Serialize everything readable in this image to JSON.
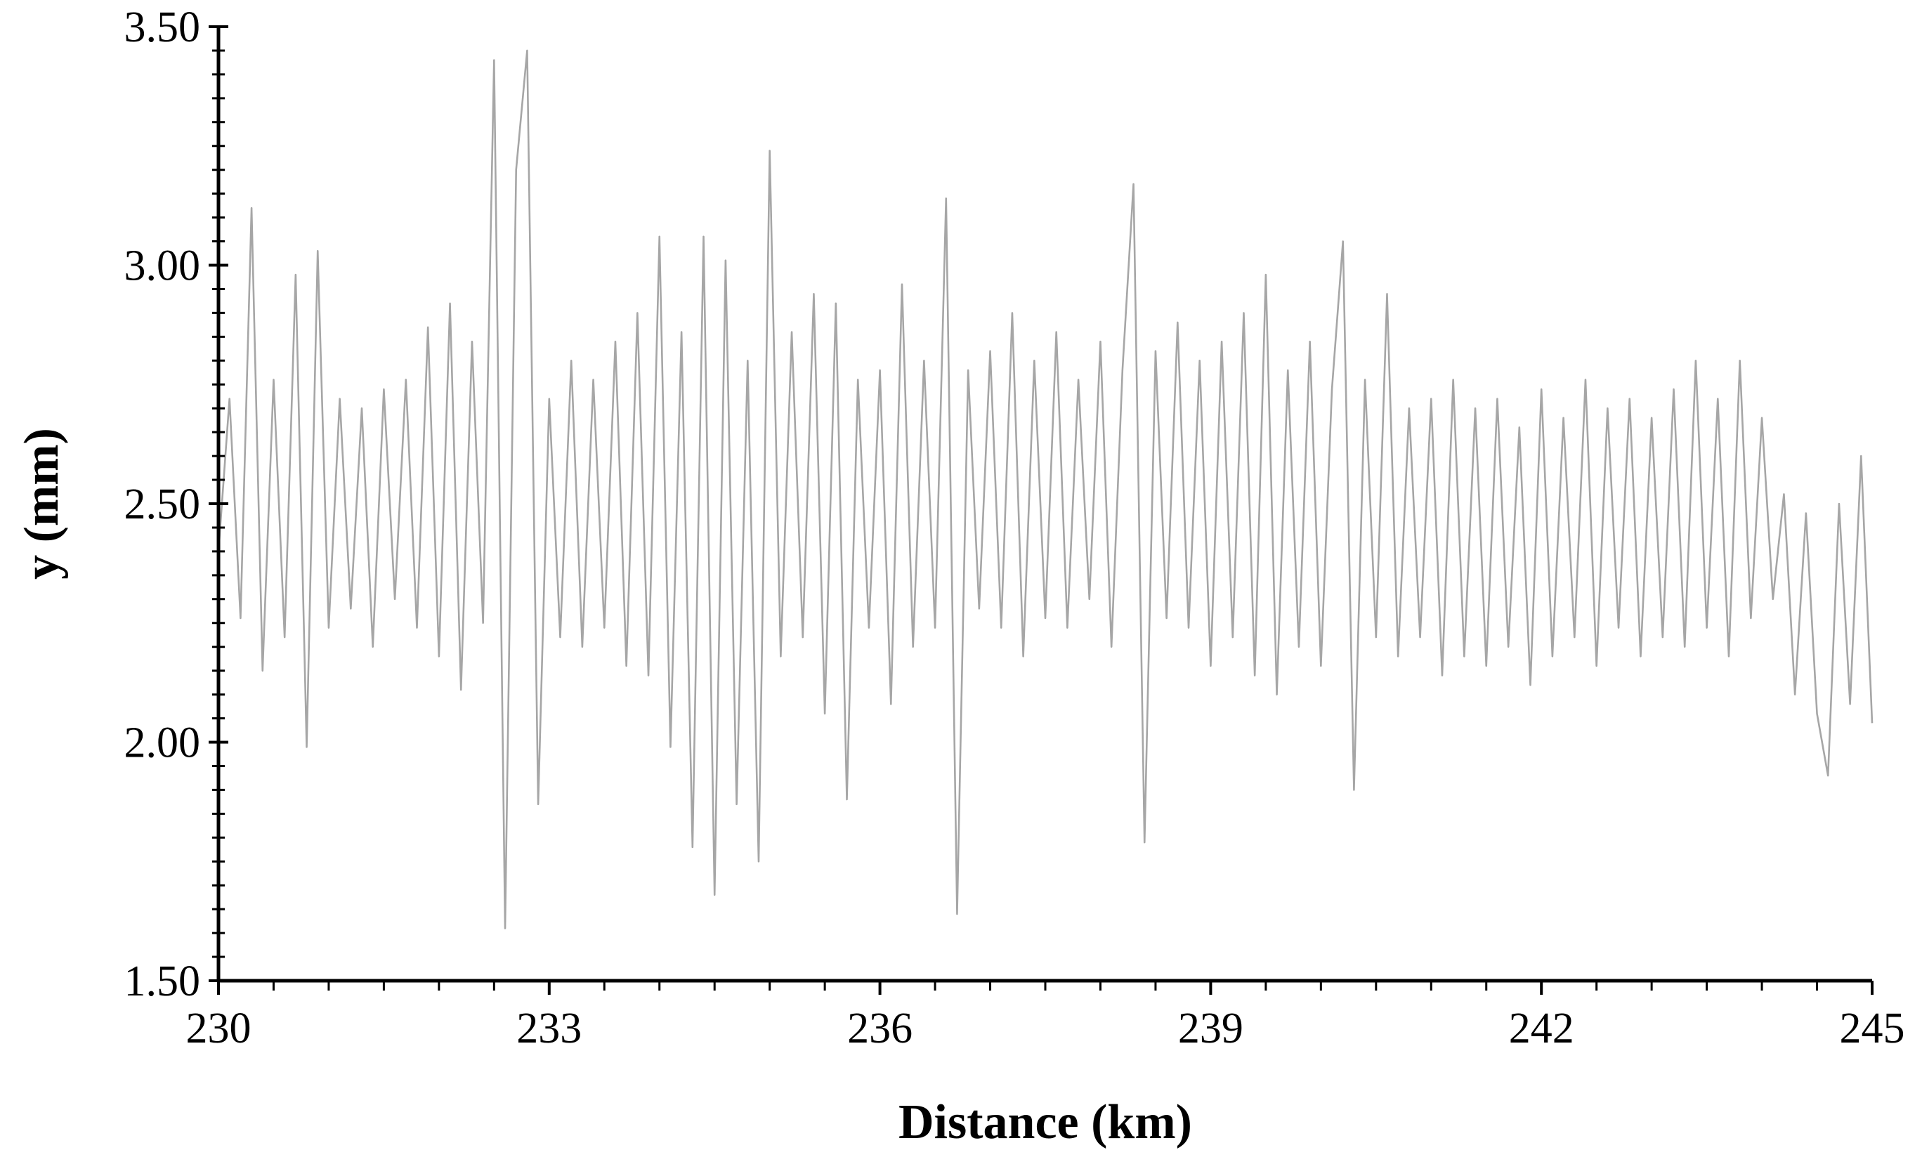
{
  "chart_data": {
    "type": "line",
    "xlabel": "Distance (km)",
    "ylabel": "y (mm)",
    "x": [
      230,
      230.1,
      230.2,
      230.3,
      230.4,
      230.5,
      230.6,
      230.7,
      230.8,
      230.9,
      231,
      231.1,
      231.2,
      231.3,
      231.4,
      231.5,
      231.6,
      231.7,
      231.8,
      231.9,
      232,
      232.1,
      232.2,
      232.3,
      232.4,
      232.5,
      232.6,
      232.7,
      232.8,
      232.9,
      233,
      233.1,
      233.2,
      233.3,
      233.4,
      233.5,
      233.6,
      233.7,
      233.8,
      233.9,
      234,
      234.1,
      234.2,
      234.3,
      234.4,
      234.5,
      234.6,
      234.7,
      234.8,
      234.9,
      235,
      235.1,
      235.2,
      235.3,
      235.4,
      235.5,
      235.6,
      235.7,
      235.8,
      235.9,
      236,
      236.1,
      236.2,
      236.3,
      236.4,
      236.5,
      236.6,
      236.7,
      236.8,
      236.9,
      237,
      237.1,
      237.2,
      237.3,
      237.4,
      237.5,
      237.6,
      237.7,
      237.8,
      237.9,
      238,
      238.1,
      238.2,
      238.3,
      238.4,
      238.5,
      238.6,
      238.7,
      238.8,
      238.9,
      239,
      239.1,
      239.2,
      239.3,
      239.4,
      239.5,
      239.6,
      239.7,
      239.8,
      239.9,
      240,
      240.1,
      240.2,
      240.3,
      240.4,
      240.5,
      240.6,
      240.7,
      240.8,
      240.9,
      241,
      241.1,
      241.2,
      241.3,
      241.4,
      241.5,
      241.6,
      241.7,
      241.8,
      241.9,
      242,
      242.1,
      242.2,
      242.3,
      242.4,
      242.5,
      242.6,
      242.7,
      242.8,
      242.9,
      243,
      243.1,
      243.2,
      243.3,
      243.4,
      243.5,
      243.6,
      243.7,
      243.8,
      243.9,
      244,
      244.1,
      244.2,
      244.3,
      244.4,
      244.5,
      244.6,
      244.7,
      244.8,
      244.9,
      245
    ],
    "series": [
      {
        "color": "#a6a6a6",
        "values": [
          2.4,
          2.72,
          2.26,
          3.12,
          2.15,
          2.76,
          2.22,
          2.98,
          1.99,
          3.03,
          2.24,
          2.72,
          2.28,
          2.7,
          2.2,
          2.74,
          2.3,
          2.76,
          2.24,
          2.87,
          2.18,
          2.92,
          2.11,
          2.84,
          2.25,
          3.43,
          1.61,
          3.2,
          3.45,
          1.87,
          2.72,
          2.22,
          2.8,
          2.2,
          2.76,
          2.24,
          2.84,
          2.16,
          2.9,
          2.14,
          3.06,
          1.99,
          2.86,
          1.78,
          3.06,
          1.68,
          3.01,
          1.87,
          2.8,
          1.75,
          3.24,
          2.18,
          2.86,
          2.22,
          2.94,
          2.06,
          2.92,
          1.88,
          2.76,
          2.24,
          2.78,
          2.08,
          2.96,
          2.2,
          2.8,
          2.24,
          3.14,
          1.64,
          2.78,
          2.28,
          2.82,
          2.24,
          2.9,
          2.18,
          2.8,
          2.26,
          2.86,
          2.24,
          2.76,
          2.3,
          2.84,
          2.2,
          2.78,
          3.17,
          1.79,
          2.82,
          2.26,
          2.88,
          2.24,
          2.8,
          2.16,
          2.84,
          2.22,
          2.9,
          2.14,
          2.98,
          2.1,
          2.78,
          2.2,
          2.84,
          2.16,
          2.74,
          3.05,
          1.9,
          2.76,
          2.22,
          2.94,
          2.18,
          2.7,
          2.22,
          2.72,
          2.14,
          2.76,
          2.18,
          2.7,
          2.16,
          2.72,
          2.2,
          2.66,
          2.12,
          2.74,
          2.18,
          2.68,
          2.22,
          2.76,
          2.16,
          2.7,
          2.24,
          2.72,
          2.18,
          2.68,
          2.22,
          2.74,
          2.2,
          2.8,
          2.24,
          2.72,
          2.18,
          2.8,
          2.26,
          2.68,
          2.3,
          2.52,
          2.1,
          2.48,
          2.06,
          1.93,
          2.5,
          2.08,
          2.6,
          2.04
        ]
      }
    ],
    "xlim": [
      230,
      245
    ],
    "xticks": [
      230,
      233,
      236,
      239,
      242,
      245
    ],
    "ylim": [
      1.5,
      3.5
    ],
    "yticks": [
      {
        "value": 1.5,
        "label": "1.50"
      },
      {
        "value": 2,
        "label": "2.00"
      },
      {
        "value": 2.5,
        "label": "2.50"
      },
      {
        "value": 3,
        "label": "3.00"
      },
      {
        "value": 3.5,
        "label": "3.50"
      }
    ],
    "grid": false
  }
}
